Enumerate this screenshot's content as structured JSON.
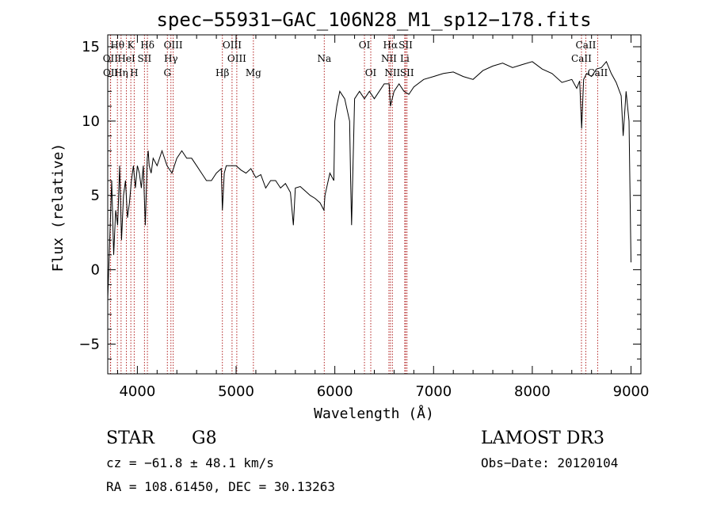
{
  "chart_data": {
    "type": "line",
    "title": "spec−55931−GAC_106N28_M1_sp12−178.fits",
    "xlabel": "Wavelength (Å)",
    "ylabel": "Flux (relative)",
    "xlim": [
      3700,
      9100
    ],
    "ylim": [
      -7,
      15.8
    ],
    "x_ticks": [
      4000,
      5000,
      6000,
      7000,
      8000,
      9000
    ],
    "y_ticks": [
      -5,
      0,
      5,
      10,
      15
    ],
    "grid": false,
    "series": [
      {
        "x": [
          3700,
          3720,
          3740,
          3760,
          3780,
          3800,
          3820,
          3840,
          3860,
          3880,
          3900,
          3920,
          3940,
          3960,
          3980,
          4000,
          4020,
          4040,
          4060,
          4080,
          4100,
          4110,
          4120,
          4140,
          4160,
          4200,
          4250,
          4300,
          4350,
          4400,
          4450,
          4500,
          4550,
          4600,
          4650,
          4700,
          4750,
          4800,
          4850,
          4861,
          4880,
          4900,
          4950,
          5000,
          5050,
          5100,
          5150,
          5200,
          5250,
          5300,
          5350,
          5400,
          5450,
          5500,
          5550,
          5580,
          5600,
          5650,
          5700,
          5750,
          5800,
          5850,
          5890,
          5900,
          5950,
          5990,
          6000,
          6020,
          6050,
          6100,
          6150,
          6160,
          6170,
          6200,
          6250,
          6300,
          6350,
          6400,
          6450,
          6500,
          6550,
          6563,
          6600,
          6650,
          6700,
          6750,
          6800,
          6900,
          7000,
          7100,
          7200,
          7300,
          7400,
          7500,
          7600,
          7700,
          7800,
          7900,
          8000,
          8100,
          8200,
          8300,
          8400,
          8450,
          8480,
          8500,
          8520,
          8550,
          8600,
          8650,
          8700,
          8750,
          8800,
          8850,
          8900,
          8920,
          8950,
          8980,
          9000
        ],
        "y": [
          -2,
          2,
          6,
          1,
          4,
          3,
          7,
          2,
          5,
          6,
          3.5,
          4.5,
          6,
          7,
          5.5,
          7,
          6.5,
          5.5,
          7,
          3,
          7.5,
          8,
          7,
          6.5,
          7.5,
          7,
          8,
          7,
          6.5,
          7.5,
          8,
          7.5,
          7.5,
          7,
          6.5,
          6,
          6,
          6.5,
          6.8,
          4,
          6.5,
          7,
          7,
          7,
          6.7,
          6.5,
          6.8,
          6.2,
          6.4,
          5.5,
          6,
          6,
          5.5,
          5.8,
          5.2,
          3,
          5.5,
          5.6,
          5.3,
          5,
          4.8,
          4.5,
          4,
          5,
          6.5,
          6,
          10,
          11,
          12,
          11.5,
          10,
          6,
          3,
          11.5,
          12,
          11.5,
          12,
          11.5,
          12,
          12.5,
          12.5,
          11,
          12,
          12.5,
          12,
          11.8,
          12.3,
          12.8,
          13,
          13.2,
          13.3,
          13,
          12.8,
          13.4,
          13.7,
          13.9,
          13.6,
          13.8,
          14,
          13.5,
          13.2,
          12.6,
          12.8,
          12.2,
          12.7,
          9.5,
          12.8,
          13.2,
          13,
          13.5,
          13.6,
          14,
          13.2,
          12.6,
          11.7,
          9,
          12,
          10,
          0.5
        ]
      }
    ],
    "spectral_lines": [
      {
        "label": "Hθ",
        "wl": 3798,
        "row": 1
      },
      {
        "label": "K",
        "wl": 3934,
        "row": 1
      },
      {
        "label": "Hδ",
        "wl": 4102,
        "row": 1
      },
      {
        "label": "OIII",
        "wl": 4363,
        "row": 1
      },
      {
        "label": "OIII",
        "wl": 4959,
        "row": 1
      },
      {
        "label": "OI",
        "wl": 6300,
        "row": 1
      },
      {
        "label": "Hα",
        "wl": 6563,
        "row": 1
      },
      {
        "label": "SII",
        "wl": 6717,
        "row": 1
      },
      {
        "label": "CaII",
        "wl": 8542,
        "row": 1
      },
      {
        "label": "OII",
        "wl": 3727,
        "row": 2
      },
      {
        "label": "HeI",
        "wl": 3889,
        "row": 2
      },
      {
        "label": "SII",
        "wl": 4072,
        "row": 2
      },
      {
        "label": "Hγ",
        "wl": 4340,
        "row": 2
      },
      {
        "label": "OIII",
        "wl": 5007,
        "row": 2
      },
      {
        "label": "Na",
        "wl": 5893,
        "row": 2
      },
      {
        "label": "NII",
        "wl": 6548,
        "row": 2
      },
      {
        "label": "Li",
        "wl": 6708,
        "row": 2
      },
      {
        "label": "CaII",
        "wl": 8498,
        "row": 2
      },
      {
        "label": "OII",
        "wl": 3729,
        "row": 3
      },
      {
        "label": "Hη",
        "wl": 3835,
        "row": 3
      },
      {
        "label": "H",
        "wl": 3968,
        "row": 3
      },
      {
        "label": "G",
        "wl": 4304,
        "row": 3
      },
      {
        "label": "Hβ",
        "wl": 4861,
        "row": 3
      },
      {
        "label": "Mg",
        "wl": 5175,
        "row": 3
      },
      {
        "label": "OI",
        "wl": 6364,
        "row": 3
      },
      {
        "label": "NII",
        "wl": 6583,
        "row": 3
      },
      {
        "label": "SII",
        "wl": 6731,
        "row": 3
      },
      {
        "label": "CaII",
        "wl": 8662,
        "row": 3
      }
    ]
  },
  "info": {
    "object_class": "STAR",
    "subclass": "G8",
    "survey": "LAMOST DR3",
    "cz": "cz = −61.8 ± 48.1 km/s",
    "obs_date": "Obs−Date: 20120104",
    "coords": "RA = 108.61450, DEC =  30.13263"
  },
  "colors": {
    "spectrum": "#000000",
    "line_marker": "#b22222",
    "axes": "#000000"
  }
}
